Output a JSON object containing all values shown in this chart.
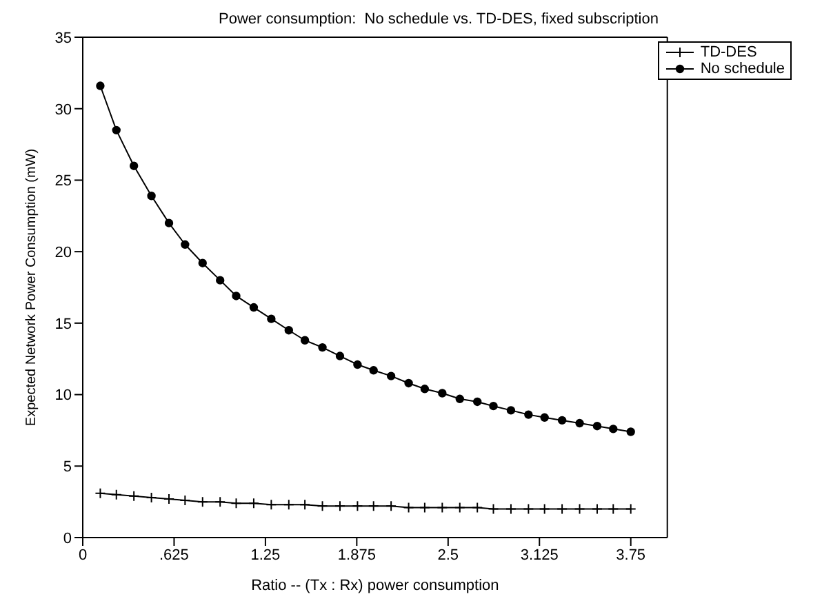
{
  "chart_data": {
    "type": "line",
    "title": "Power consumption:  No schedule vs. TD-DES, fixed subscription",
    "xlabel": "Ratio -- (Tx : Rx) power consumption",
    "ylabel": "Expected Network Power Consumption (mW)",
    "x": [
      0.12,
      0.23,
      0.35,
      0.47,
      0.59,
      0.7,
      0.82,
      0.94,
      1.05,
      1.17,
      1.29,
      1.41,
      1.52,
      1.64,
      1.76,
      1.88,
      1.99,
      2.11,
      2.23,
      2.34,
      2.46,
      2.58,
      2.7,
      2.81,
      2.93,
      3.05,
      3.16,
      3.28,
      3.4,
      3.52,
      3.63,
      3.75
    ],
    "series": [
      {
        "name": "TD-DES",
        "color": "#000000",
        "marker": "cross",
        "values": [
          3.1,
          3.0,
          2.9,
          2.8,
          2.7,
          2.6,
          2.5,
          2.5,
          2.4,
          2.4,
          2.3,
          2.3,
          2.3,
          2.2,
          2.2,
          2.2,
          2.2,
          2.2,
          2.1,
          2.1,
          2.1,
          2.1,
          2.1,
          2.0,
          2.0,
          2.0,
          2.0,
          2.0,
          2.0,
          2.0,
          2.0,
          2.0
        ]
      },
      {
        "name": "No schedule",
        "color": "#000000",
        "marker": "circle",
        "values": [
          31.6,
          28.5,
          26.0,
          23.9,
          22.0,
          20.5,
          19.2,
          18.0,
          16.9,
          16.1,
          15.3,
          14.5,
          13.8,
          13.3,
          12.7,
          12.1,
          11.7,
          11.3,
          10.8,
          10.4,
          10.1,
          9.7,
          9.5,
          9.2,
          8.9,
          8.6,
          8.4,
          8.2,
          8.0,
          7.8,
          7.6,
          7.4
        ]
      }
    ],
    "xlim": [
      0,
      4
    ],
    "xticks": [
      0,
      {
        "value": 0.625,
        "label": ".625"
      },
      1.25,
      1.875,
      2.5,
      3.125,
      3.75
    ],
    "ylim": [
      0,
      35
    ],
    "yticks": [
      0,
      5,
      10,
      15,
      20,
      25,
      30,
      35
    ],
    "grid": false,
    "legend": "top right",
    "line_style": "solid"
  }
}
